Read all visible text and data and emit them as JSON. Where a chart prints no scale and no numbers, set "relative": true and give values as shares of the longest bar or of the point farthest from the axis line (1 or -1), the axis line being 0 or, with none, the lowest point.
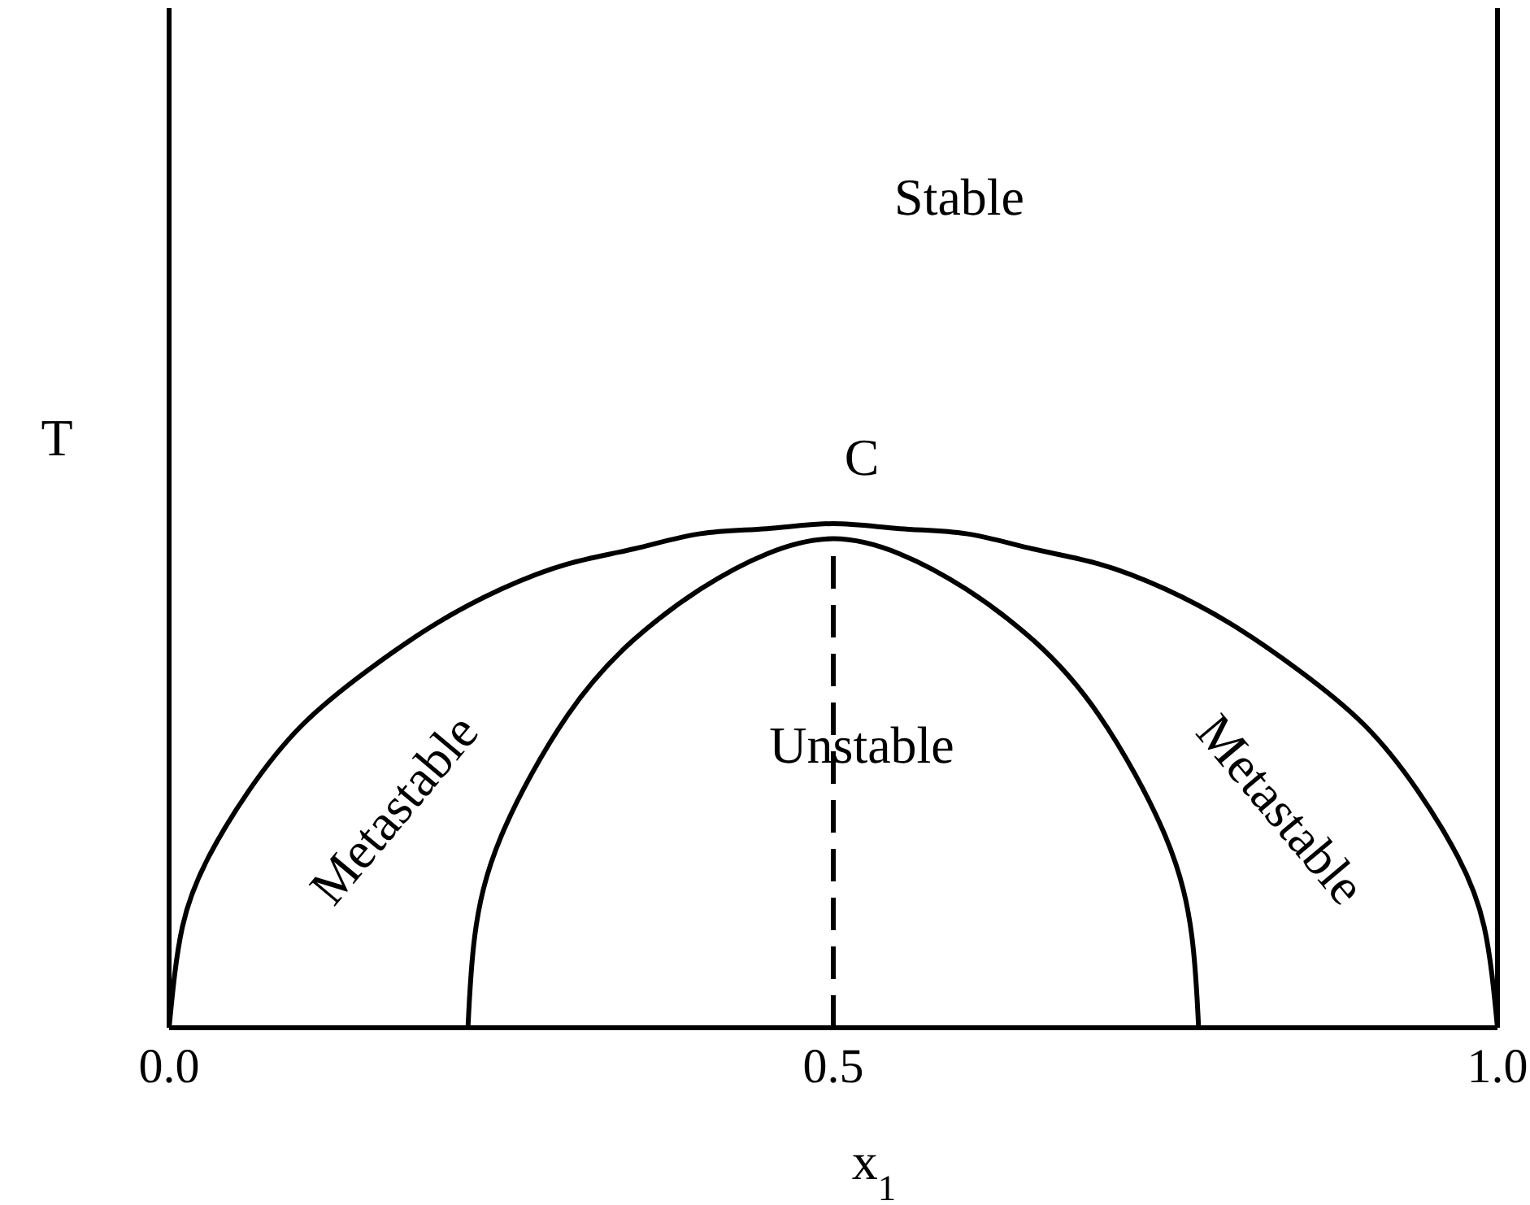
{
  "chart_data": {
    "type": "line",
    "relative": true,
    "xlabel": "x$_{1}$",
    "ylabel": "T",
    "xlim": [
      0,
      1
    ],
    "xticks": [
      {
        "value": 0,
        "label": "0.0"
      },
      0.5,
      {
        "value": 1,
        "label": "1.0"
      }
    ],
    "series": [
      {
        "color": "#000000",
        "x": [
          0,
          0.01,
          0.03,
          0.06,
          0.1,
          0.15,
          0.2,
          0.25,
          0.3,
          0.35,
          0.4,
          0.45,
          0.5,
          0.55,
          0.6,
          0.65,
          0.7,
          0.75,
          0.8,
          0.85,
          0.9,
          0.94,
          0.97,
          0.99,
          1
        ],
        "values": [
          0,
          0.2,
          0.34,
          0.47,
          0.6,
          0.71,
          0.8,
          0.87,
          0.92,
          0.95,
          0.98,
          0.99,
          1,
          0.99,
          0.98,
          0.95,
          0.92,
          0.87,
          0.8,
          0.71,
          0.6,
          0.47,
          0.34,
          0.2,
          0
        ]
      },
      {
        "color": "#000000",
        "x": [
          0.225,
          0.23,
          0.25,
          0.3,
          0.35,
          0.4,
          0.45,
          0.5,
          0.55,
          0.6,
          0.65,
          0.7,
          0.75,
          0.77,
          0.775
        ],
        "values": [
          0,
          0.18,
          0.38,
          0.62,
          0.77,
          0.87,
          0.94,
          0.97,
          0.94,
          0.87,
          0.77,
          0.62,
          0.38,
          0.18,
          0
        ]
      }
    ],
    "ref_lines": [
      {
        "axis": "x",
        "value": 0,
        "color": "#000000"
      },
      {
        "axis": "x",
        "value": 1,
        "color": "#000000"
      },
      {
        "axis": "x",
        "value": 0.5,
        "color": "#000000",
        "line_style": "dashed"
      }
    ],
    "annotations": [
      "Stable",
      "C",
      "Metastable",
      "Unstable",
      "Metastable"
    ]
  }
}
